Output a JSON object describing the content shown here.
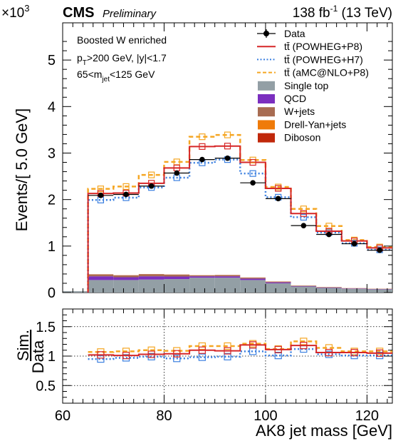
{
  "header": {
    "exponent_base": "×10",
    "exponent_power": "3",
    "experiment": "CMS",
    "status": "Preliminary",
    "lumi_value": "138 fb",
    "lumi_power": "-1",
    "lumi_energy": " (13 TeV)"
  },
  "annotations": {
    "line1": "Boosted W enriched",
    "line2_a": "p",
    "line2_sub": "T",
    "line2_b": ">200 GeV, |y|<1.7",
    "line3_a": "65<m",
    "line3_sub": "jet",
    "line3_b": "<125 GeV"
  },
  "legend": [
    {
      "label": "Data",
      "style": "data",
      "color": "#000000"
    },
    {
      "label": "tt̄ (POWHEG+P8)",
      "style": "solid",
      "color": "#d62728"
    },
    {
      "label": "tt̄ (POWHEG+H7)",
      "style": "dotted",
      "color": "#3a7fe0"
    },
    {
      "label": "tt̄ (aMC@NLO+P8)",
      "style": "dashed",
      "color": "#f5a623"
    },
    {
      "label": "Single top",
      "style": "fill",
      "color": "#939fa5"
    },
    {
      "label": "QCD",
      "style": "fill",
      "color": "#7b2fbf"
    },
    {
      "label": "W+jets",
      "style": "fill",
      "color": "#a86c52"
    },
    {
      "label": "Drell-Yan+jets",
      "style": "fill",
      "color": "#ef7b0a"
    },
    {
      "label": "Diboson",
      "style": "fill",
      "color": "#c0280b"
    }
  ],
  "chart_data": {
    "type": "histogram",
    "xlabel": "AK8 jet mass [GeV]",
    "ylabel_top": "Events/[ 5.0 GeV]",
    "ylabel_ratio_num": "Sim.",
    "ylabel_ratio_den": "Data",
    "xlim": [
      60,
      125
    ],
    "ylim_top": [
      0,
      5800
    ],
    "ylim_ratio": [
      0.2,
      1.8
    ],
    "x_ticks": [
      "60",
      "80",
      "100",
      "120"
    ],
    "x_tick_values": [
      60,
      80,
      100,
      120
    ],
    "y_ticks_top": [
      "0",
      "1",
      "2",
      "3",
      "4",
      "5"
    ],
    "y_tick_values_top": [
      0,
      1000,
      2000,
      3000,
      4000,
      5000
    ],
    "y_ticks_ratio": [
      "0.5",
      "1",
      "1.5"
    ],
    "y_tick_values_ratio": [
      0.5,
      1.0,
      1.5
    ],
    "bin_edges": [
      65,
      70,
      75,
      80,
      85,
      90,
      95,
      100,
      105,
      110,
      115,
      120,
      125
    ],
    "bin_centers": [
      67.5,
      72.5,
      77.5,
      82.5,
      87.5,
      92.5,
      97.5,
      102.5,
      107.5,
      112.5,
      117.5,
      122.5
    ],
    "data": [
      2090,
      2110,
      2290,
      2570,
      2860,
      2890,
      2360,
      2020,
      1440,
      1250,
      1050,
      910
    ],
    "data_err": [
      30,
      30,
      30,
      35,
      35,
      35,
      30,
      30,
      25,
      25,
      22,
      20
    ],
    "powheg_p8": [
      2130,
      2140,
      2350,
      2680,
      3140,
      3150,
      2800,
      2240,
      1700,
      1320,
      1110,
      960
    ],
    "powheg_h7": [
      1990,
      2040,
      2260,
      2470,
      2790,
      2860,
      2560,
      2050,
      1620,
      1290,
      1060,
      920
    ],
    "amcnlo_p8": [
      2230,
      2280,
      2530,
      2810,
      3350,
      3390,
      2850,
      2270,
      1800,
      1430,
      1130,
      980
    ],
    "single_top": [
      270,
      270,
      280,
      290,
      320,
      320,
      270,
      200,
      130,
      100,
      80,
      70
    ],
    "qcd": [
      80,
      60,
      70,
      55,
      30,
      30,
      30,
      20,
      10,
      8,
      8,
      6
    ],
    "wjets": [
      40,
      40,
      45,
      40,
      20,
      25,
      20,
      15,
      10,
      8,
      6,
      5
    ],
    "drell_yan": [
      2,
      2,
      2,
      2,
      2,
      2,
      2,
      2,
      1,
      1,
      1,
      1
    ],
    "diboson": [
      2,
      2,
      2,
      2,
      2,
      2,
      2,
      2,
      1,
      1,
      1,
      1
    ],
    "ratio_powheg_p8": [
      1.02,
      1.01,
      1.03,
      1.04,
      1.1,
      1.09,
      1.19,
      1.11,
      1.18,
      1.06,
      1.06,
      1.05
    ],
    "ratio_powheg_h7": [
      0.95,
      0.97,
      0.99,
      0.96,
      0.98,
      0.99,
      1.08,
      1.01,
      1.12,
      1.03,
      1.01,
      1.01
    ],
    "ratio_amcnlo_p8": [
      1.07,
      1.08,
      1.1,
      1.09,
      1.17,
      1.17,
      1.21,
      1.12,
      1.25,
      1.14,
      1.08,
      1.08
    ],
    "colors": {
      "data": "#000000",
      "powheg_p8": "#d62728",
      "powheg_h7": "#3a7fe0",
      "amcnlo_p8": "#f5a623",
      "single_top": "#939fa5",
      "qcd": "#7b2fbf",
      "wjets": "#a86c52",
      "drell_yan": "#ef7b0a",
      "diboson": "#c0280b"
    }
  }
}
